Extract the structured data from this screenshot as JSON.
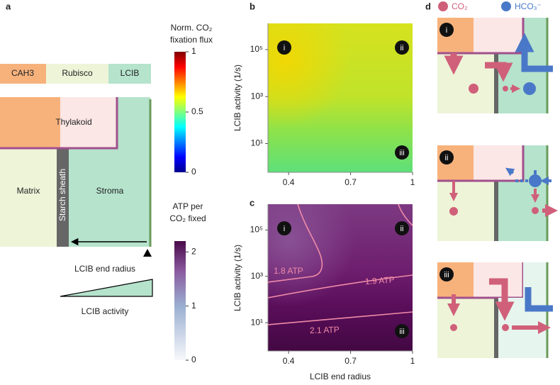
{
  "figure": {
    "panel_a": {
      "label": "a",
      "legend": [
        "CAH3",
        "Rubisco",
        "LCIB"
      ],
      "thylakoid": "Thylakoid",
      "matrix": "Matrix",
      "starch_sheath": "Starch sheath",
      "stroma": "Stroma",
      "end_radius": "LCIB end radius",
      "activity": "LCIB activity"
    },
    "flux_colorbar": {
      "title": [
        "Norm. CO₂",
        "fixation flux"
      ],
      "lim": [
        0,
        1
      ],
      "ticks": [
        0,
        0.5,
        1
      ]
    },
    "atp_colorbar": {
      "title": [
        "ATP per",
        "CO₂ fixed"
      ],
      "lim": [
        0,
        2.2
      ],
      "ticks": [
        0,
        1,
        2
      ]
    },
    "panel_b": {
      "label": "b",
      "type": "heatmap",
      "ylabel": "LCIB activity (1/s)",
      "xlim": [
        0.3,
        1
      ],
      "xticks": [
        0.4,
        0.7,
        1
      ],
      "ylim": [
        0.6,
        1300000
      ],
      "ylog": true,
      "yticks": [
        {
          "value": 10,
          "label": "10¹"
        },
        {
          "value": 1000,
          "label": "10³"
        },
        {
          "value": 100000,
          "label": "10⁵"
        }
      ],
      "markers": [
        "i",
        "ii",
        "iii"
      ]
    },
    "panel_c": {
      "label": "c",
      "type": "contour",
      "ylabel": "LCIB activity (1/s)",
      "xlabel": "LCIB end radius",
      "xlim": [
        0.3,
        1
      ],
      "xticks": [
        0.4,
        0.7,
        1
      ],
      "ylim": [
        0.6,
        1300000
      ],
      "ylog": true,
      "yticks": [
        {
          "value": 10,
          "label": "10¹"
        },
        {
          "value": 1000,
          "label": "10³"
        },
        {
          "value": 100000,
          "label": "10⁵"
        }
      ],
      "markers": [
        "i",
        "ii",
        "iii"
      ],
      "contours": {
        "levels": [
          1.8,
          1.9,
          2.1
        ],
        "value_labels": [
          "1.8 ATP",
          "1.9 ATP",
          "2.1 ATP"
        ]
      }
    },
    "panel_d": {
      "label": "d",
      "legend": [
        "CO₂",
        "HCO₃⁻"
      ],
      "markers": [
        "i",
        "ii",
        "iii"
      ]
    }
  }
}
